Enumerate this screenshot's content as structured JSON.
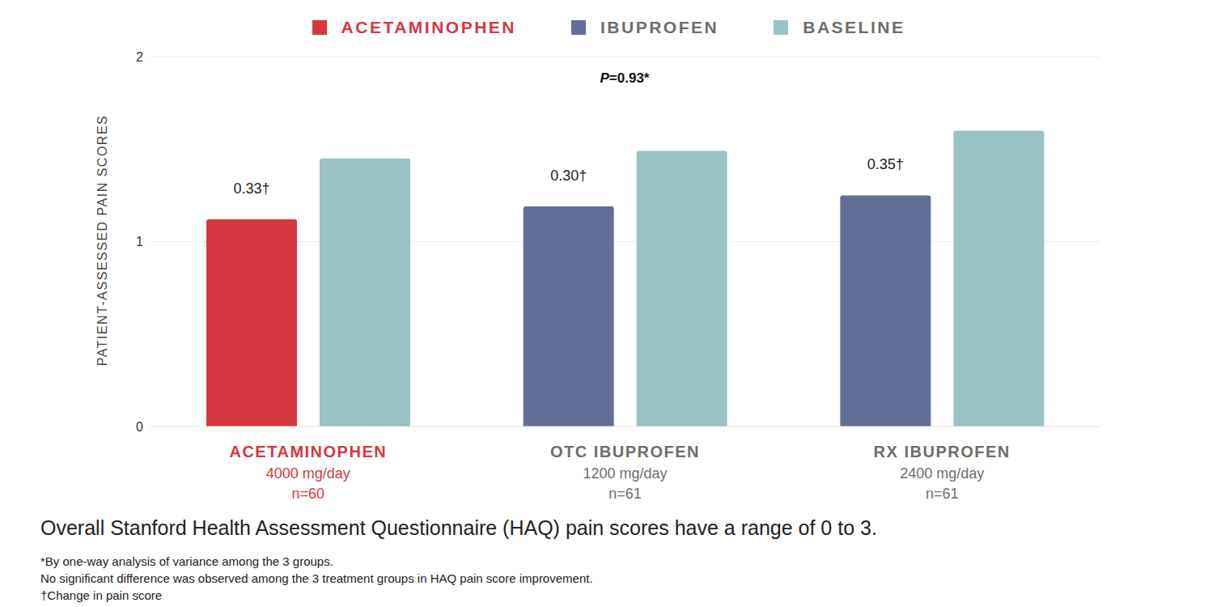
{
  "chart_data": {
    "type": "bar",
    "annotation": "P=0.93*",
    "y_label": "PATIENT-ASSESSED PAIN SCORES",
    "categories": [
      "ACETAMINOPHEN",
      "OTC IBUPROFEN",
      "RX IBUPROFEN"
    ],
    "doses": [
      "4000 mg/day",
      "1200 mg/day",
      "2400 mg/day"
    ],
    "sample_sizes": [
      "n=60",
      "n=61",
      "n=61"
    ],
    "series": [
      {
        "name": "ACETAMINOPHEN",
        "color": "#d63841",
        "values": [
          1.12,
          null,
          null
        ],
        "change_labels": [
          "0.33†",
          null,
          null
        ]
      },
      {
        "name": "IBUPROFEN",
        "color": "#636f96",
        "values": [
          null,
          1.19,
          1.25
        ],
        "change_labels": [
          null,
          "0.30†",
          "0.35†"
        ]
      },
      {
        "name": "BASELINE",
        "color": "#9ac1c4",
        "values": [
          1.45,
          1.49,
          1.6
        ]
      }
    ],
    "ylim": [
      0,
      2
    ],
    "yticks": [
      0,
      1,
      2
    ],
    "grid": true,
    "caption": "Overall Stanford Health Assessment Questionnaire (HAQ) pain scores have a range of 0 to 3.",
    "footnotes": [
      "*By one-way analysis of variance among the 3 groups.",
      "No significant difference was observed among the 3 treatment groups in HAQ pain score improvement.",
      "†Change in pain score"
    ]
  }
}
